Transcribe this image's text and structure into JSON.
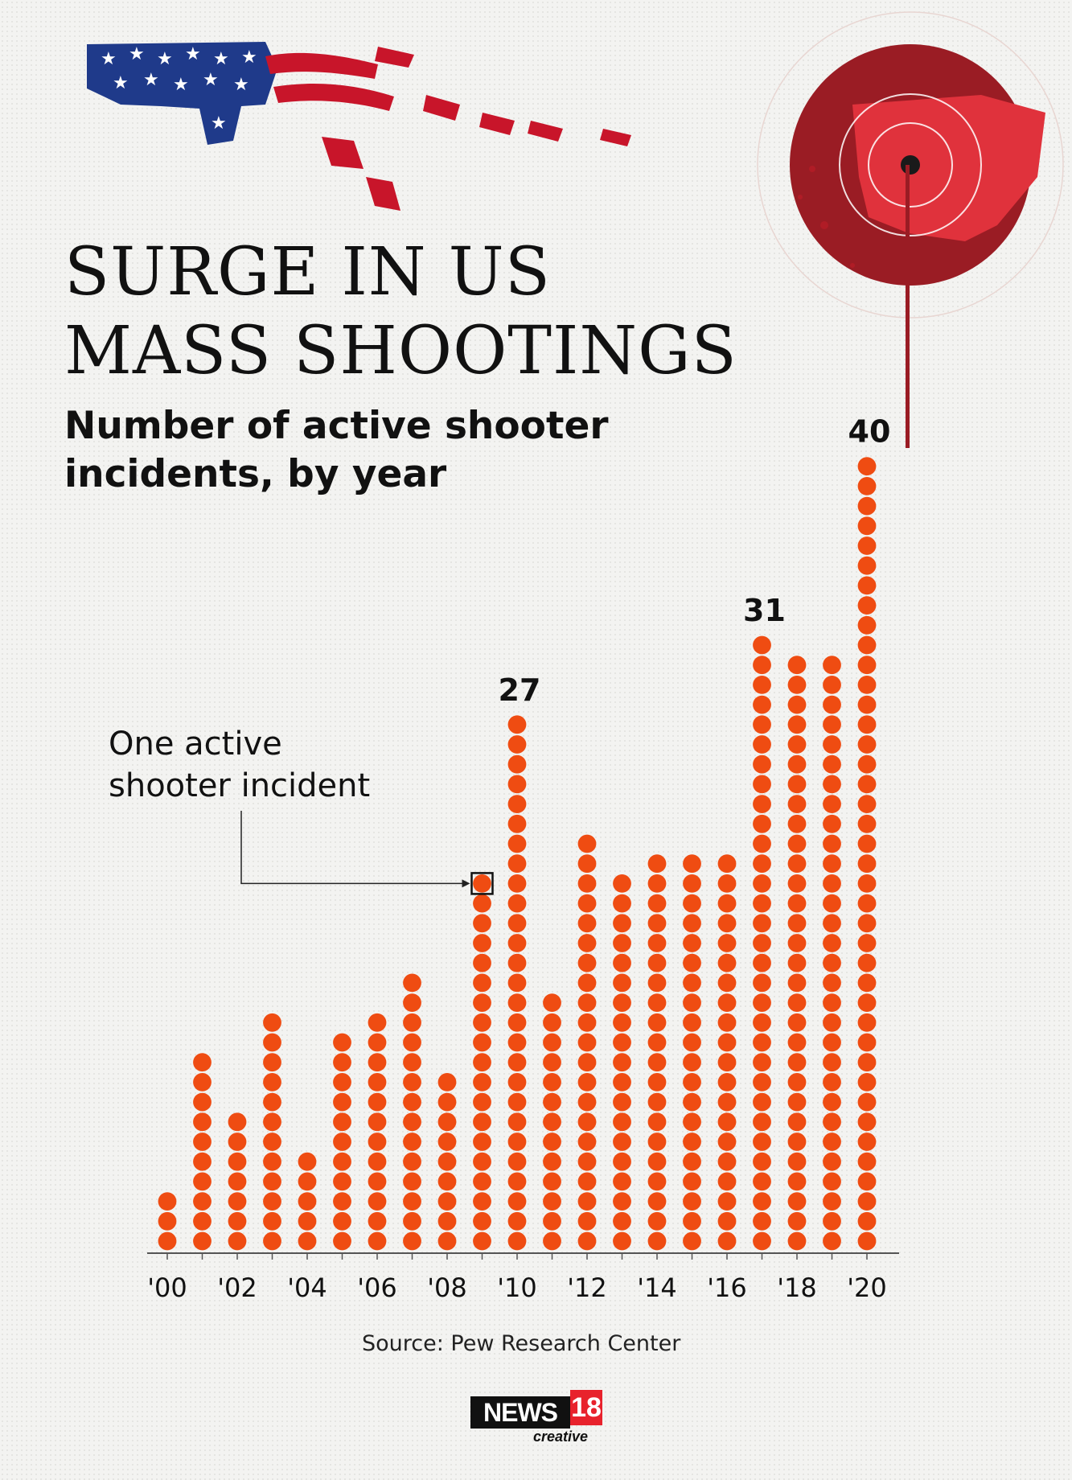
{
  "title_lines": [
    "SURGE IN US",
    "MASS SHOOTINGS"
  ],
  "subtitle_lines": [
    "Number of active shooter",
    "incidents, by year"
  ],
  "annotation_lines": [
    "One active",
    "shooter incident"
  ],
  "source": "Source: Pew Research Center",
  "logo": {
    "brand": "NEWS",
    "number": "18",
    "tagline": "creative"
  },
  "colors": {
    "dot": "#ef4c12",
    "flag_red": "#c8152a",
    "flag_blue": "#1f3a8a",
    "target_red": "#9a1c24"
  },
  "chart_data": {
    "type": "bar",
    "mark": "dot stacks (one dot = one incident)",
    "title": "Number of active shooter incidents, by year",
    "categories": [
      "2000",
      "2001",
      "2002",
      "2003",
      "2004",
      "2005",
      "2006",
      "2007",
      "2008",
      "2009",
      "2010",
      "2011",
      "2012",
      "2013",
      "2014",
      "2015",
      "2016",
      "2017",
      "2018",
      "2019",
      "2020"
    ],
    "tick_labels": [
      "'00",
      "",
      "'02",
      "",
      "'04",
      "",
      "'06",
      "",
      "'08",
      "",
      "'10",
      "",
      "'12",
      "",
      "'14",
      "",
      "'16",
      "",
      "'18",
      "",
      "'20"
    ],
    "values": [
      3,
      10,
      7,
      12,
      5,
      11,
      12,
      14,
      9,
      19,
      27,
      13,
      21,
      19,
      20,
      20,
      20,
      31,
      30,
      30,
      40
    ],
    "value_labels": {
      "10": "27",
      "17": "31",
      "20": "40"
    },
    "highlighted_dot": {
      "category_index": 9,
      "dot_number": 19
    },
    "ylim": [
      0,
      40
    ],
    "grid": false,
    "legend": "none"
  }
}
